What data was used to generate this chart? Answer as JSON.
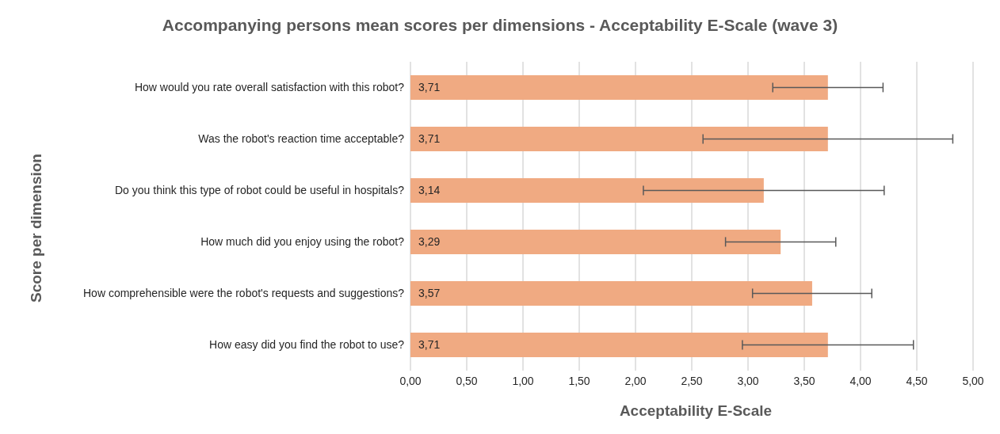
{
  "chart_data": {
    "type": "bar",
    "orientation": "horizontal",
    "title": "Accompanying persons mean scores per dimensions - Acceptability E-Scale (wave 3)",
    "xlabel": "Acceptability E-Scale",
    "ylabel": "Score per dimension",
    "categories": [
      "How would you rate overall satisfaction with this robot?",
      "Was the robot's reaction time acceptable?",
      "Do you think this type of robot could be useful in hospitals?",
      "How much did you enjoy using the robot?",
      "How comprehensible were the robot's requests and suggestions?",
      "How easy did you find the robot to use?"
    ],
    "values": [
      3.71,
      3.71,
      3.14,
      3.29,
      3.57,
      3.71
    ],
    "errors": [
      0.49,
      1.11,
      1.07,
      0.49,
      0.53,
      0.76
    ],
    "value_labels": [
      "3,71",
      "3,71",
      "3,14",
      "3,29",
      "3,57",
      "3,71"
    ],
    "color": "#f0aa82",
    "xlim": [
      0,
      5
    ],
    "xticks": [
      {
        "value": 0,
        "label": "0,00"
      },
      {
        "value": 0.5,
        "label": "0,50"
      },
      {
        "value": 1,
        "label": "1,00"
      },
      {
        "value": 1.5,
        "label": "1,50"
      },
      {
        "value": 2,
        "label": "2,00"
      },
      {
        "value": 2.5,
        "label": "2,50"
      },
      {
        "value": 3,
        "label": "3,00"
      },
      {
        "value": 3.5,
        "label": "3,50"
      },
      {
        "value": 4,
        "label": "4,00"
      },
      {
        "value": 4.5,
        "label": "4,50"
      },
      {
        "value": 5,
        "label": "5,00"
      }
    ],
    "grid": "x",
    "legend": false
  }
}
